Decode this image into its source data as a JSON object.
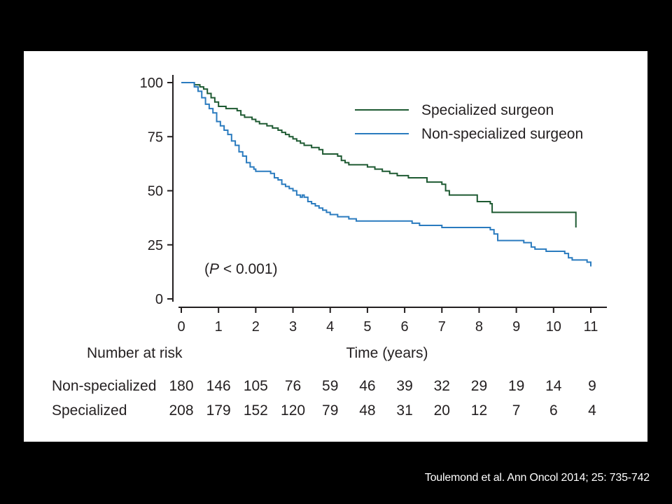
{
  "citation": "Toulemond et al. Ann Oncol 2014; 25: 735-742",
  "chart_data": {
    "type": "line",
    "subtype": "kaplan-meier step curve",
    "xlabel": "Time (years)",
    "ylabel": "",
    "xlim": [
      0,
      11
    ],
    "ylim": [
      0,
      100
    ],
    "x_ticks": [
      0,
      1,
      2,
      3,
      4,
      5,
      6,
      7,
      8,
      9,
      10,
      11
    ],
    "y_ticks": [
      0,
      25,
      50,
      75,
      100
    ],
    "grid": false,
    "legend_position": "top-right",
    "annotation": {
      "prefix": "(",
      "italic": "P",
      "suffix": " < 0.001)"
    },
    "series": [
      {
        "name": "Specialized surgeon",
        "color": "#1e5a32",
        "points": [
          [
            0,
            100
          ],
          [
            0.3,
            100
          ],
          [
            0.35,
            99
          ],
          [
            0.5,
            98
          ],
          [
            0.6,
            97
          ],
          [
            0.7,
            95
          ],
          [
            0.8,
            93
          ],
          [
            0.9,
            91
          ],
          [
            1.0,
            89
          ],
          [
            1.2,
            88
          ],
          [
            1.5,
            87
          ],
          [
            1.6,
            85
          ],
          [
            1.7,
            84
          ],
          [
            1.9,
            83
          ],
          [
            2.0,
            82
          ],
          [
            2.1,
            81
          ],
          [
            2.3,
            80
          ],
          [
            2.45,
            79
          ],
          [
            2.6,
            78
          ],
          [
            2.7,
            77
          ],
          [
            2.8,
            76
          ],
          [
            2.9,
            75
          ],
          [
            3.0,
            74
          ],
          [
            3.1,
            73
          ],
          [
            3.2,
            72
          ],
          [
            3.3,
            71
          ],
          [
            3.5,
            70
          ],
          [
            3.7,
            69
          ],
          [
            3.8,
            67
          ],
          [
            4.2,
            66
          ],
          [
            4.3,
            64
          ],
          [
            4.4,
            63
          ],
          [
            4.5,
            62
          ],
          [
            5.0,
            61
          ],
          [
            5.2,
            60
          ],
          [
            5.4,
            59
          ],
          [
            5.6,
            58
          ],
          [
            5.8,
            57
          ],
          [
            6.1,
            56
          ],
          [
            6.6,
            55
          ],
          [
            6.6,
            54
          ],
          [
            7.0,
            53
          ],
          [
            7.1,
            50
          ],
          [
            7.2,
            48
          ],
          [
            7.9,
            48
          ],
          [
            7.95,
            45
          ],
          [
            8.3,
            44
          ],
          [
            8.35,
            40
          ],
          [
            10.6,
            40
          ],
          [
            10.6,
            33
          ]
        ]
      },
      {
        "name": "Non-specialized surgeon",
        "color": "#2a7bbf",
        "points": [
          [
            0,
            100
          ],
          [
            0.3,
            100
          ],
          [
            0.35,
            98
          ],
          [
            0.45,
            96
          ],
          [
            0.55,
            93
          ],
          [
            0.65,
            90
          ],
          [
            0.75,
            88
          ],
          [
            0.85,
            86
          ],
          [
            0.95,
            82
          ],
          [
            1.05,
            80
          ],
          [
            1.15,
            78
          ],
          [
            1.25,
            76
          ],
          [
            1.35,
            73
          ],
          [
            1.45,
            71
          ],
          [
            1.55,
            68
          ],
          [
            1.65,
            66
          ],
          [
            1.75,
            63
          ],
          [
            1.85,
            61
          ],
          [
            1.95,
            60
          ],
          [
            2.0,
            59
          ],
          [
            2.4,
            58
          ],
          [
            2.5,
            56
          ],
          [
            2.6,
            55
          ],
          [
            2.7,
            53
          ],
          [
            2.8,
            52
          ],
          [
            2.9,
            51
          ],
          [
            3.0,
            50
          ],
          [
            3.1,
            48
          ],
          [
            3.2,
            47
          ],
          [
            3.25,
            48
          ],
          [
            3.3,
            47
          ],
          [
            3.4,
            45
          ],
          [
            3.5,
            44
          ],
          [
            3.6,
            43
          ],
          [
            3.7,
            42
          ],
          [
            3.8,
            41
          ],
          [
            3.9,
            40
          ],
          [
            4.0,
            39
          ],
          [
            4.2,
            38
          ],
          [
            4.5,
            37
          ],
          [
            4.7,
            36
          ],
          [
            6.2,
            35
          ],
          [
            6.4,
            34
          ],
          [
            7.0,
            33
          ],
          [
            8.3,
            32
          ],
          [
            8.4,
            30
          ],
          [
            8.5,
            27
          ],
          [
            9.2,
            26
          ],
          [
            9.4,
            24
          ],
          [
            9.5,
            23
          ],
          [
            9.8,
            22
          ],
          [
            10.3,
            21
          ],
          [
            10.4,
            19
          ],
          [
            10.5,
            18
          ],
          [
            10.9,
            17
          ],
          [
            11.0,
            15
          ]
        ]
      }
    ],
    "risk_table": {
      "title": "Number at risk",
      "rows": [
        {
          "label": "Non-specialized",
          "values": [
            180,
            146,
            105,
            76,
            59,
            46,
            39,
            32,
            29,
            19,
            14,
            9
          ]
        },
        {
          "label": "Specialized",
          "values": [
            208,
            179,
            152,
            120,
            79,
            48,
            31,
            20,
            12,
            7,
            6,
            4
          ]
        }
      ]
    }
  }
}
